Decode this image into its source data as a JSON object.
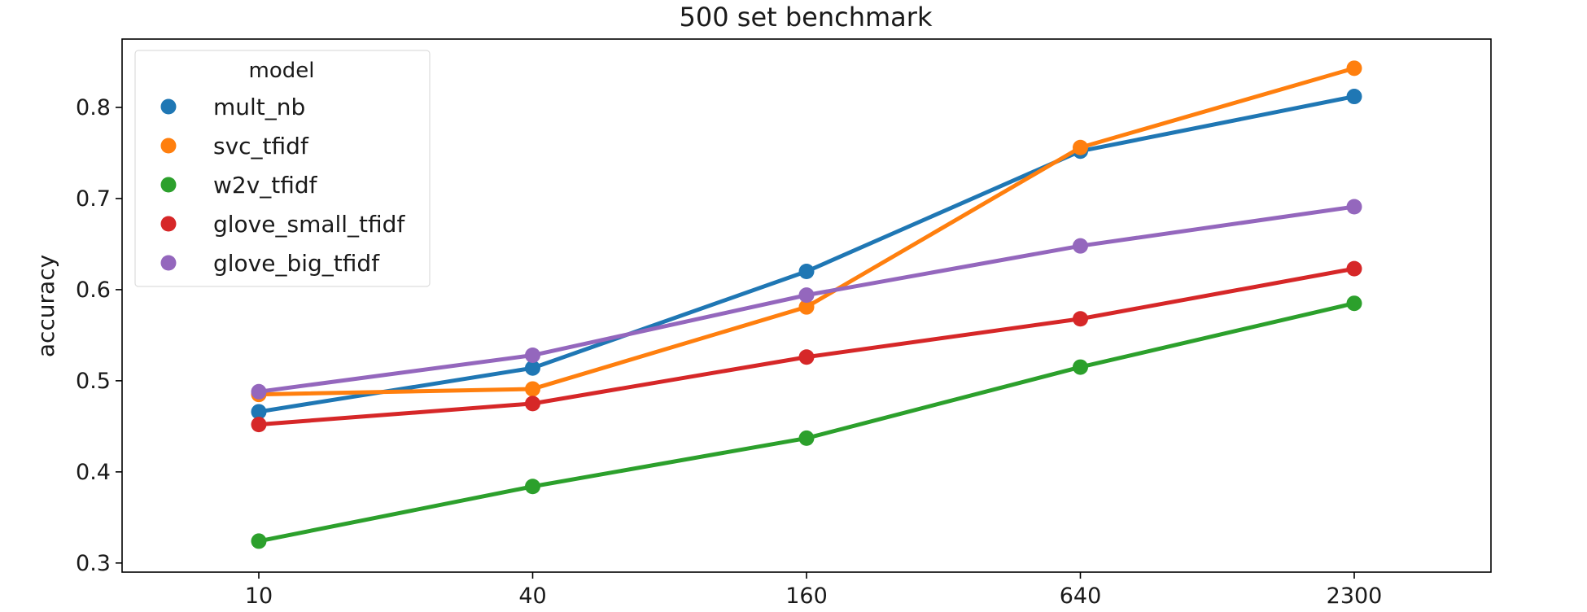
{
  "chart_data": {
    "type": "line",
    "title": "500 set benchmark",
    "xlabel": "",
    "ylabel": "accuracy",
    "categories": [
      "10",
      "40",
      "160",
      "640",
      "2300"
    ],
    "ylim": [
      0.29,
      0.875
    ],
    "yticks": [
      0.3,
      0.4,
      0.5,
      0.6,
      0.7,
      0.8
    ],
    "grid": false,
    "legend": {
      "title": "model",
      "placement": "top-left"
    },
    "series": [
      {
        "name": "mult_nb",
        "color": "#1f77b4",
        "values": [
          0.466,
          0.514,
          0.62,
          0.752,
          0.812
        ]
      },
      {
        "name": "svc_tfidf",
        "color": "#ff7f0e",
        "values": [
          0.485,
          0.491,
          0.581,
          0.756,
          0.843
        ]
      },
      {
        "name": "w2v_tfidf",
        "color": "#2ca02c",
        "values": [
          0.324,
          0.384,
          0.437,
          0.515,
          0.585
        ]
      },
      {
        "name": "glove_small_tfidf",
        "color": "#d62728",
        "values": [
          0.452,
          0.475,
          0.526,
          0.568,
          0.623
        ]
      },
      {
        "name": "glove_big_tfidf",
        "color": "#9467bd",
        "values": [
          0.488,
          0.528,
          0.594,
          0.648,
          0.691
        ]
      }
    ]
  }
}
